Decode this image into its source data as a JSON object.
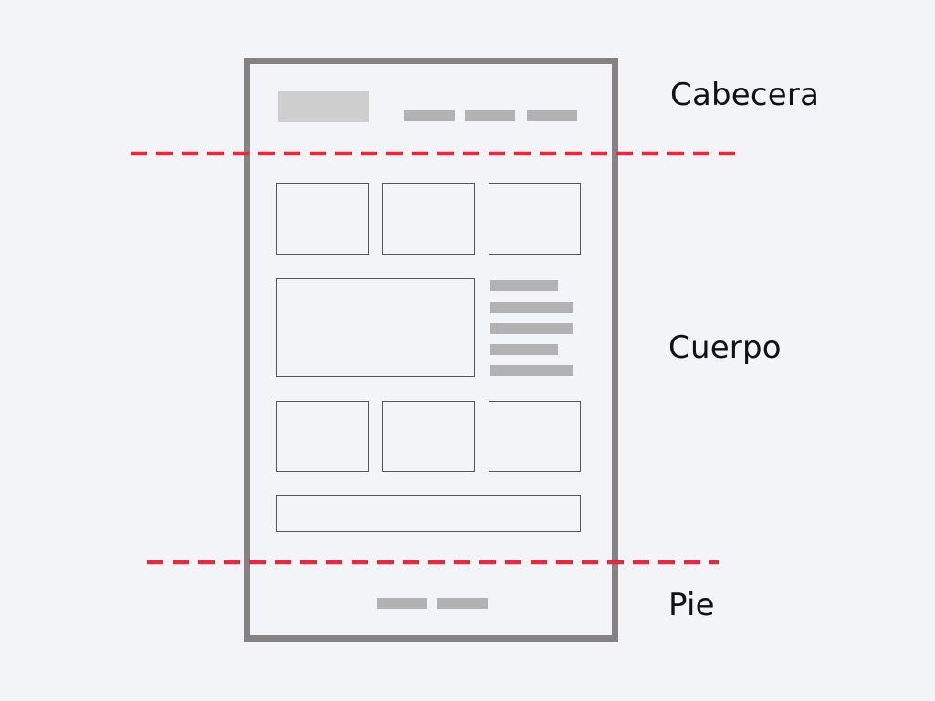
{
  "labels": {
    "header": "Cabecera",
    "body": "Cuerpo",
    "footer": "Pie"
  },
  "colors": {
    "background": "#f2f4f8",
    "frame": "#868282",
    "placeholder": "#b2b2b2",
    "box_border": "#575555",
    "divider": "#e8283c",
    "label_text": "#111111"
  }
}
